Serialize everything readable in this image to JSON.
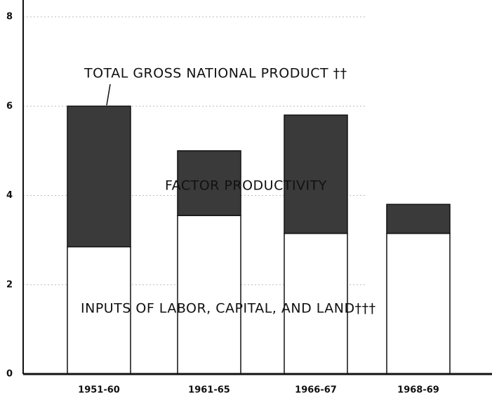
{
  "chart_data": {
    "type": "stacked_bar",
    "categories": [
      "1951-60",
      "1961-65",
      "1966-67",
      "1968-69"
    ],
    "series": [
      {
        "name": "INPUTS OF LABOR, CAPITAL, AND LAND†††",
        "color": "#ffffff",
        "values": [
          2.85,
          3.55,
          3.15,
          3.15
        ]
      },
      {
        "name": "FACTOR PRODUCTIVITY",
        "color": "#3a3a3a",
        "values": [
          3.15,
          1.45,
          2.65,
          0.65
        ]
      }
    ],
    "annotations": [
      "TOTAL GROSS NATIONAL PRODUCT ††"
    ],
    "ylim": [
      0,
      8
    ],
    "yticks": [
      0,
      2,
      4,
      6,
      8
    ],
    "grid": true
  }
}
